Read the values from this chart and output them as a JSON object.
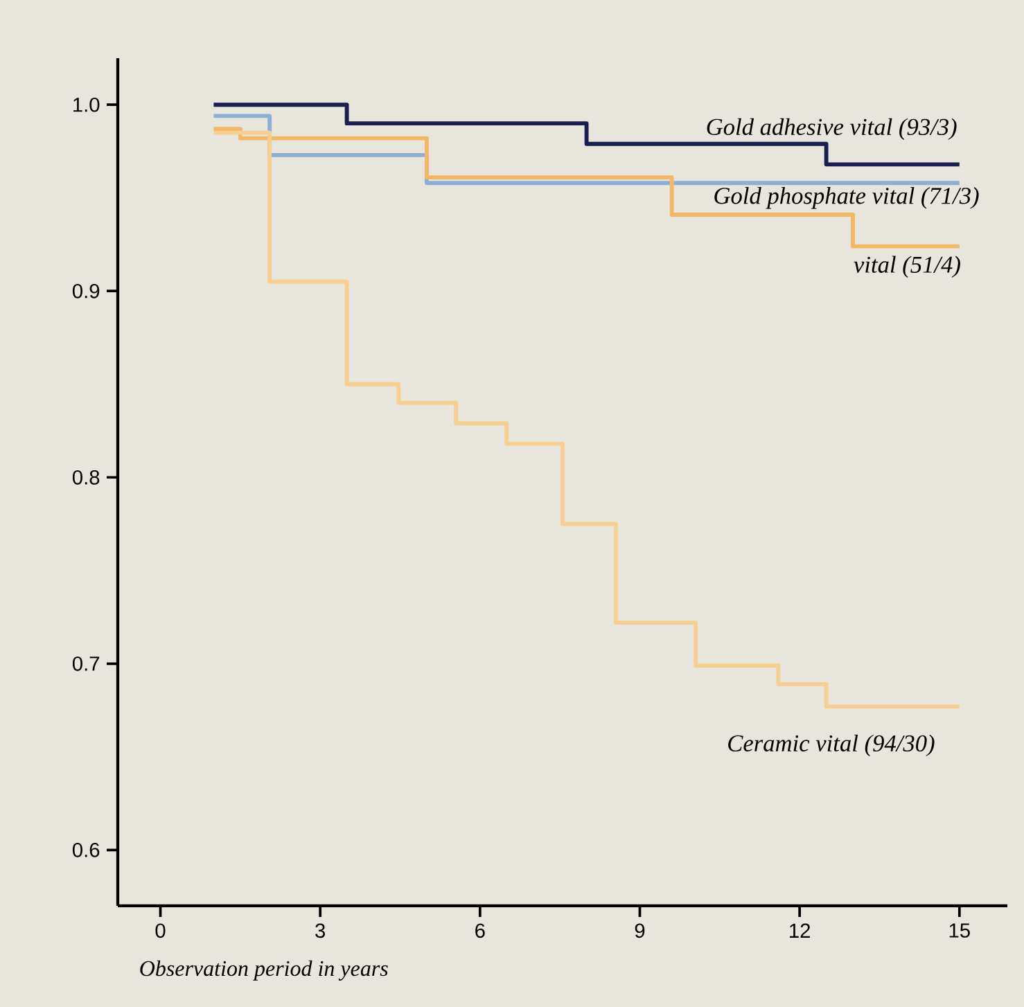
{
  "chart_data": {
    "type": "step",
    "xlabel": "Observation period in years",
    "xlim": [
      -0.8,
      15.9
    ],
    "ylim": [
      0.57,
      1.025
    ],
    "xticks": [
      0,
      3,
      6,
      9,
      12,
      15
    ],
    "yticks": [
      {
        "value": 0.6,
        "label": "0.6"
      },
      {
        "value": 0.7,
        "label": "0.7"
      },
      {
        "value": 0.8,
        "label": "0.8"
      },
      {
        "value": 0.9,
        "label": "0.9"
      },
      {
        "value": 1.0,
        "label": "1.0"
      }
    ],
    "grid": false,
    "series": [
      {
        "name": "Gold adhesive vital (93/3)",
        "color": "#1b1f4f",
        "x": [
          1.0,
          3.5,
          8.0,
          12.5,
          15.0
        ],
        "values": [
          1.0,
          0.99,
          0.979,
          0.968,
          0.968
        ]
      },
      {
        "name": "Gold phosphate vital (71/3)",
        "color": "#8eaed6",
        "x": [
          1.0,
          2.05,
          5.0,
          15.0
        ],
        "values": [
          0.994,
          0.973,
          0.958,
          0.958
        ]
      },
      {
        "name": "vital (51/4)",
        "color": "#f2b866",
        "x": [
          1.0,
          1.5,
          5.0,
          9.6,
          13.0,
          15.0
        ],
        "values": [
          0.987,
          0.982,
          0.961,
          0.941,
          0.924,
          0.924
        ]
      },
      {
        "name": "Ceramic vital (94/30)",
        "color": "#f7cf93",
        "x": [
          1.0,
          2.05,
          3.5,
          4.47,
          5.55,
          6.5,
          7.55,
          8.55,
          10.05,
          11.6,
          12.5,
          15.0
        ],
        "values": [
          0.985,
          0.905,
          0.85,
          0.84,
          0.829,
          0.818,
          0.775,
          0.722,
          0.699,
          0.689,
          0.677,
          0.677
        ]
      }
    ]
  }
}
